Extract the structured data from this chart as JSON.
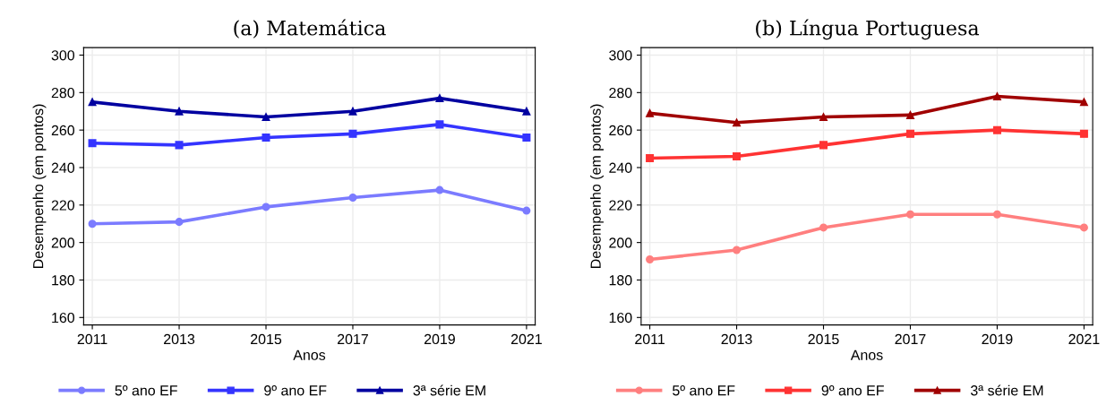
{
  "chart_data": [
    {
      "type": "line",
      "title": "(a) Matemática",
      "xlabel": "Anos",
      "ylabel": "Desempenho (em pontos)",
      "x": [
        2011,
        2013,
        2015,
        2017,
        2019,
        2021
      ],
      "xlim": [
        2010.8,
        2021.2
      ],
      "xticks": [
        2011,
        2013,
        2015,
        2017,
        2019,
        2021
      ],
      "ylim": [
        156,
        304
      ],
      "yticks": [
        160,
        180,
        200,
        220,
        240,
        260,
        280,
        300
      ],
      "grid": true,
      "legend": "bottom",
      "series": [
        {
          "name": "5º ano EF",
          "color": "#7b7bff",
          "marker": "circle",
          "values": [
            210,
            211,
            219,
            224,
            228,
            217
          ]
        },
        {
          "name": "9º ano EF",
          "color": "#3434ff",
          "marker": "square",
          "values": [
            253,
            252,
            256,
            258,
            263,
            256
          ]
        },
        {
          "name": "3ª série EM",
          "color": "#0000a0",
          "marker": "triangle",
          "values": [
            275,
            270,
            267,
            270,
            277,
            270
          ]
        }
      ]
    },
    {
      "type": "line",
      "title": "(b) Língua Portuguesa",
      "xlabel": "Anos",
      "ylabel": "Desempenho (em pontos)",
      "x": [
        2011,
        2013,
        2015,
        2017,
        2019,
        2021
      ],
      "xlim": [
        2010.8,
        2021.2
      ],
      "xticks": [
        2011,
        2013,
        2015,
        2017,
        2019,
        2021
      ],
      "ylim": [
        156,
        304
      ],
      "yticks": [
        160,
        180,
        200,
        220,
        240,
        260,
        280,
        300
      ],
      "grid": true,
      "legend": "bottom",
      "series": [
        {
          "name": "5º ano EF",
          "color": "#ff7f7f",
          "marker": "circle",
          "values": [
            191,
            196,
            208,
            215,
            215,
            208
          ]
        },
        {
          "name": "9º ano EF",
          "color": "#ff3333",
          "marker": "square",
          "values": [
            245,
            246,
            252,
            258,
            260,
            258
          ]
        },
        {
          "name": "3ª série EM",
          "color": "#a00000",
          "marker": "triangle",
          "values": [
            269,
            264,
            267,
            268,
            278,
            275
          ]
        }
      ]
    }
  ]
}
